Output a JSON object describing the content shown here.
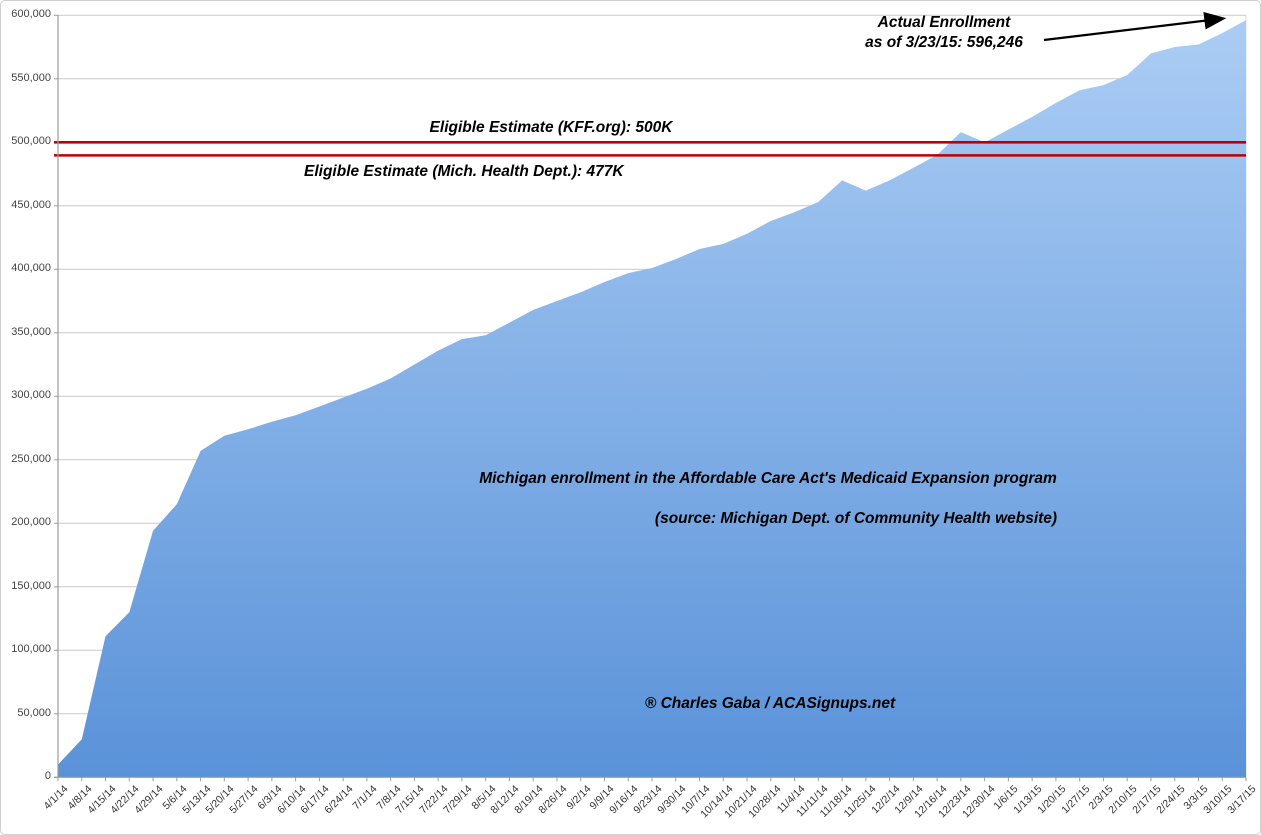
{
  "figure": {
    "annotations": {
      "actual_line1": "Actual Enrollment",
      "actual_line2": "as of 3/23/15: 596,246",
      "kff_label": "Eligible Estimate (KFF.org): 500K",
      "mich_label": "Eligible Estimate (Mich. Health Dept.): 477K",
      "title": "Michigan enrollment in the Affordable Care Act's Medicaid Expansion program",
      "source": "(source: Michigan Dept. of Community Health website)",
      "watermark": "® Charles Gaba / ACASignups.net"
    }
  },
  "chart_data": {
    "type": "area",
    "series_name": "Michigan Medicaid Expansion enrollment",
    "x": [
      "4/1/14",
      "4/8/14",
      "4/15/14",
      "4/22/14",
      "4/29/14",
      "5/6/14",
      "5/13/14",
      "5/20/14",
      "5/27/14",
      "6/3/14",
      "6/10/14",
      "6/17/14",
      "6/24/14",
      "7/1/14",
      "7/8/14",
      "7/15/14",
      "7/22/14",
      "7/29/14",
      "8/5/14",
      "8/12/14",
      "8/19/14",
      "8/26/14",
      "9/2/14",
      "9/9/14",
      "9/16/14",
      "9/23/14",
      "9/30/14",
      "10/7/14",
      "10/14/14",
      "10/21/14",
      "10/28/14",
      "11/4/14",
      "11/11/14",
      "11/18/14",
      "11/25/14",
      "12/2/14",
      "12/9/14",
      "12/16/14",
      "12/23/14",
      "12/30/14",
      "1/6/15",
      "1/13/15",
      "1/20/15",
      "1/27/15",
      "2/3/15",
      "2/10/15",
      "2/17/15",
      "2/24/15",
      "3/3/15",
      "3/10/15",
      "3/17/15"
    ],
    "values": [
      10000,
      30000,
      111000,
      130000,
      194000,
      215000,
      257000,
      269000,
      274000,
      280000,
      285000,
      292000,
      299000,
      306000,
      314000,
      325000,
      336000,
      345000,
      348000,
      358000,
      368000,
      375000,
      382000,
      390000,
      397000,
      401000,
      408000,
      416000,
      420000,
      428000,
      438000,
      445000,
      453000,
      470000,
      462000,
      470000,
      480000,
      490000,
      508000,
      500000,
      510000,
      520000,
      531000,
      541000,
      545000,
      553000,
      570000,
      575000,
      577000,
      586000,
      596246
    ],
    "ylim": [
      0,
      600000
    ],
    "ytick_step": 50000,
    "ytick_labels": [
      "0",
      "50,000",
      "100,000",
      "150,000",
      "200,000",
      "250,000",
      "300,000",
      "350,000",
      "400,000",
      "450,000",
      "500,000",
      "550,000",
      "600,000"
    ],
    "grid": true,
    "legend": "none",
    "reference_lines": [
      {
        "label": "Eligible Estimate (KFF.org): 500K",
        "value": 500000,
        "drawn_at": 500000
      },
      {
        "label": "Eligible Estimate (Mich. Health Dept.): 477K",
        "value": 477000,
        "drawn_at": 489700
      }
    ],
    "annotation_point": {
      "label": "Actual Enrollment as of 3/23/15: 596,246",
      "date": "3/23/15",
      "value": 596246
    },
    "colors": {
      "area_top": "#abcdf4",
      "area_bottom": "#5a92d9",
      "reference_line": "#c00000",
      "gridline": "#c9c9c9",
      "axis": "#9b9b9b",
      "arrow": "#000000"
    }
  }
}
